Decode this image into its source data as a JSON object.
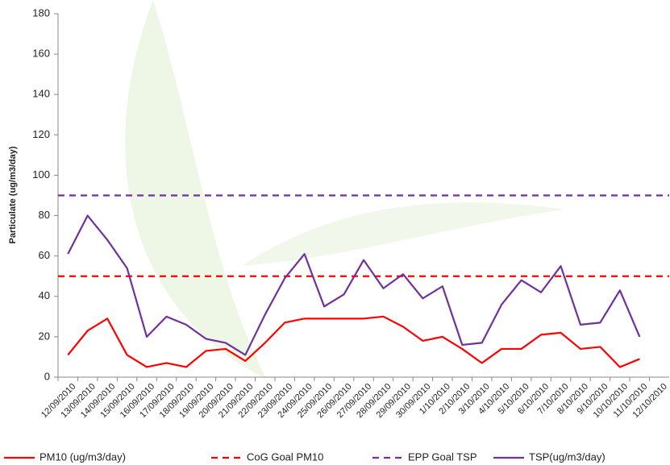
{
  "chart_data": {
    "type": "line",
    "y_label": "Particulate (ug/m3/day)",
    "categories": [
      "12/09/2010",
      "13/09/2010",
      "14/09/2010",
      "15/09/2010",
      "16/09/2010",
      "17/09/2010",
      "18/09/2010",
      "19/09/2010",
      "20/09/2010",
      "21/09/2010",
      "22/09/2010",
      "23/09/2010",
      "24/09/2010",
      "25/09/2010",
      "26/09/2010",
      "27/09/2010",
      "28/09/2010",
      "29/09/2010",
      "30/09/2010",
      "1/10/2010",
      "2/10/2010",
      "3/10/2010",
      "4/10/2010",
      "5/10/2010",
      "6/10/2010",
      "7/10/2010",
      "8/10/2010",
      "9/10/2010",
      "10/10/2010",
      "11/10/2010",
      "12/10/2010"
    ],
    "series": [
      {
        "name": "PM10 (ug/m3/day)",
        "color": "#ff0000",
        "values": [
          11,
          23,
          29,
          11,
          5,
          7,
          5,
          13,
          14,
          8,
          17,
          27,
          29,
          29,
          29,
          29,
          30,
          25,
          18,
          20,
          14,
          7,
          14,
          14,
          21,
          22,
          14,
          15,
          5,
          9,
          null
        ]
      },
      {
        "name": "CoG Goal PM10",
        "color": "#ff0000",
        "value": 50,
        "dashed": true
      },
      {
        "name": "EPP Goal TSP",
        "color": "#7030a0",
        "value": 90,
        "dashed": true
      },
      {
        "name": "TSP(ug/m3/day)",
        "color": "#7030a0",
        "values": [
          61,
          80,
          68,
          54,
          20,
          30,
          26,
          19,
          17,
          11,
          31,
          49,
          61,
          35,
          41,
          58,
          44,
          51,
          39,
          45,
          16,
          17,
          36,
          48,
          42,
          55,
          26,
          27,
          43,
          20,
          null
        ]
      }
    ],
    "ylim": [
      0,
      180
    ],
    "yticks": [
      0,
      20,
      40,
      60,
      80,
      100,
      120,
      140,
      160,
      180
    ],
    "grid": false
  }
}
